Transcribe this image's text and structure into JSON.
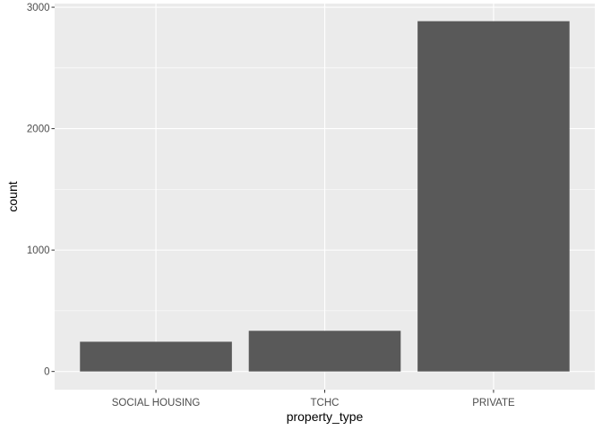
{
  "chart_data": {
    "type": "bar",
    "title": "",
    "xlabel": "property_type",
    "ylabel": "count",
    "categories": [
      "SOCIAL HOUSING",
      "TCHC",
      "PRIVATE"
    ],
    "values": [
      245,
      335,
      2885
    ],
    "ylim": [
      -150,
      3030
    ],
    "yticks": [
      0,
      1000,
      2000,
      3000
    ],
    "ytick_labels": [
      "0",
      "1000",
      "2000",
      "3000"
    ],
    "grid": true,
    "legend": "none",
    "colors": {
      "panel_background": "#ebebeb",
      "grid_major": "#ffffff",
      "bar_fill": "#595959",
      "tick_mark": "#333333"
    }
  }
}
